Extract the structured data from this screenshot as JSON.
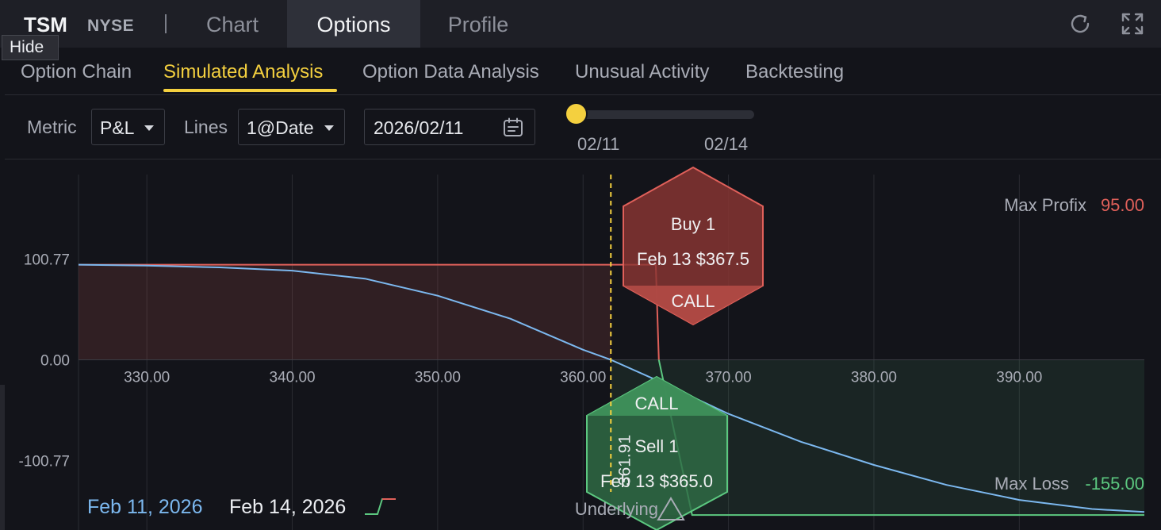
{
  "header": {
    "ticker": "TSM",
    "exchange": "NYSE",
    "tabs": [
      {
        "label": "Chart",
        "active": false
      },
      {
        "label": "Options",
        "active": true
      },
      {
        "label": "Profile",
        "active": false
      }
    ],
    "refresh_icon": "refresh-icon",
    "fullscreen_icon": "fullscreen-icon"
  },
  "tooltip": {
    "hide_label": "Hide"
  },
  "subtabs": [
    {
      "label": "Option Chain",
      "active": false
    },
    {
      "label": "Simulated Analysis",
      "active": true
    },
    {
      "label": "Option Data Analysis",
      "active": false
    },
    {
      "label": "Unusual Activity",
      "active": false
    },
    {
      "label": "Backtesting",
      "active": false
    }
  ],
  "controls": {
    "metric_label": "Metric",
    "metric_value": "P&L",
    "lines_label": "Lines",
    "lines_value": "1@Date",
    "date_value": "2026/02/11",
    "calendar_icon": "calendar-icon",
    "slider_start": "02/11",
    "slider_end": "02/14",
    "slider_position": 0
  },
  "colors": {
    "accent": "#f4d03f",
    "profit": "#e0605a",
    "loss": "#5cc880",
    "line_date": "#7cb8ef",
    "background": "#13141a"
  },
  "chart_data": {
    "type": "line",
    "xlabel": "",
    "ylabel": "",
    "x_ticks": [
      "330.00",
      "340.00",
      "350.00",
      "360.00",
      "370.00",
      "380.00",
      "390.00"
    ],
    "y_ticks": [
      "100.77",
      "0.00",
      "-100.77"
    ],
    "xlim": [
      325.3,
      398.6
    ],
    "ylim": [
      -170,
      185
    ],
    "breakeven_label": "361.91",
    "breakeven": 361.91,
    "max_profit_label": "Max Profix",
    "max_profit_value": "95.00",
    "max_loss_label": "Max Loss",
    "max_loss_value": "-155.00",
    "series": [
      {
        "name": "Feb 11, 2026",
        "color": "#7cb8ef",
        "x": [
          325.3,
          330,
          335,
          340,
          345,
          350,
          355,
          360,
          361.91,
          365,
          370,
          375,
          380,
          385,
          390,
          395,
          398.6
        ],
        "y": [
          95.0,
          94.0,
          92.3,
          89.0,
          81.0,
          64.0,
          41.0,
          10.0,
          0.0,
          -20.0,
          -54.0,
          -82.0,
          -105.0,
          -125.0,
          -140.0,
          -149.0,
          -152.0
        ]
      },
      {
        "name": "Feb 14, 2026",
        "color": "#5cc880",
        "x": [
          325.3,
          365.0,
          367.5,
          398.6
        ],
        "y": [
          95.0,
          95.0,
          -155.0,
          -155.0
        ]
      }
    ],
    "legs": [
      {
        "action": "Buy 1",
        "detail": "Feb 13 $367.5",
        "type": "CALL"
      },
      {
        "action": "Sell 1",
        "detail": "Feb 13 $365.0",
        "type": "CALL"
      }
    ],
    "underlying_label": "Underlying"
  }
}
